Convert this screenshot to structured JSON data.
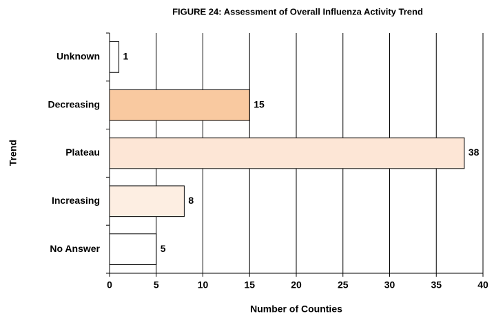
{
  "chart_data": {
    "type": "hbar",
    "title": "FIGURE 24: Assessment of Overall Influenza Activity Trend",
    "x_label": "Number of Counties",
    "y_label": "Trend",
    "categories": [
      "Unknown",
      "Decreasing",
      "Plateau",
      "Increasing",
      "No Answer"
    ],
    "values": [
      1,
      15,
      38,
      8,
      5
    ],
    "colors": [
      "#ffffff",
      "#f9c9a0",
      "#fde6d6",
      "#fdeee2",
      "#ffffff"
    ],
    "xlim": [
      0,
      40
    ],
    "xticks": [
      0,
      5,
      10,
      15,
      20,
      25,
      30,
      35,
      40
    ],
    "grid": true
  }
}
